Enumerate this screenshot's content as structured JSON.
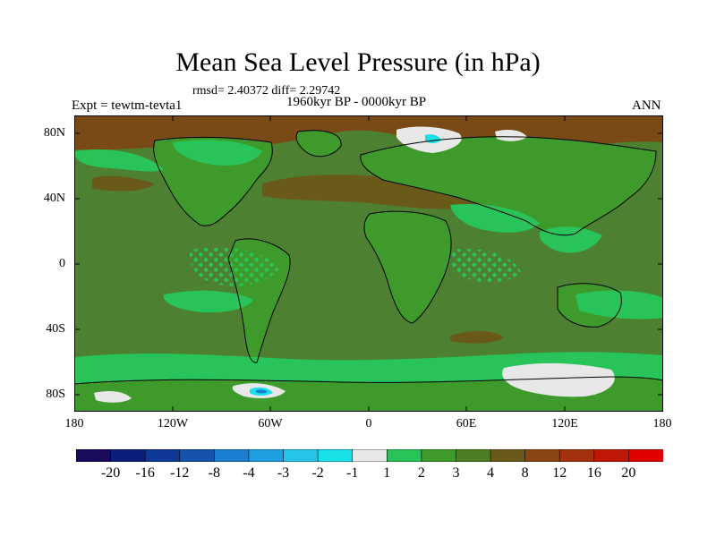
{
  "title": "Mean Sea Level Pressure (in hPa)",
  "stats": "rmsd= 2.40372 diff= 2.29742",
  "expt": "Expt = tewtm-tevta1",
  "period": "1960kyr BP - 0000kyr BP",
  "season": "ANN",
  "lat_labels": [
    "80N",
    "40N",
    "0",
    "40S",
    "80S"
  ],
  "lon_labels": [
    "180",
    "120W",
    "60W",
    "0",
    "60E",
    "120E",
    "180"
  ],
  "colorbar": {
    "labels": [
      "-20",
      "-16",
      "-12",
      "-8",
      "-4",
      "-3",
      "-2",
      "-1",
      "1",
      "2",
      "3",
      "4",
      "8",
      "12",
      "16",
      "20"
    ],
    "colors": [
      "#1a0a5c",
      "#0b1f7a",
      "#0f3797",
      "#1552ad",
      "#1a7fcf",
      "#1f9fe0",
      "#26c5e8",
      "#1ae0e8",
      "#e8e8e8",
      "#28c45a",
      "#3f9a2c",
      "#4e7d24",
      "#6a5a1a",
      "#8a4512",
      "#a3300c",
      "#c01806",
      "#e00000"
    ]
  },
  "colors": {
    "ocean": "#4d8030",
    "land": "#3f9a2c",
    "light_green": "#28c45a",
    "brown": "#6a5a1a",
    "brown_dark": "#7a4a16",
    "ice": "#e8e8e8",
    "cyan": "#1ae0e8",
    "blue": "#1a7fcf"
  }
}
